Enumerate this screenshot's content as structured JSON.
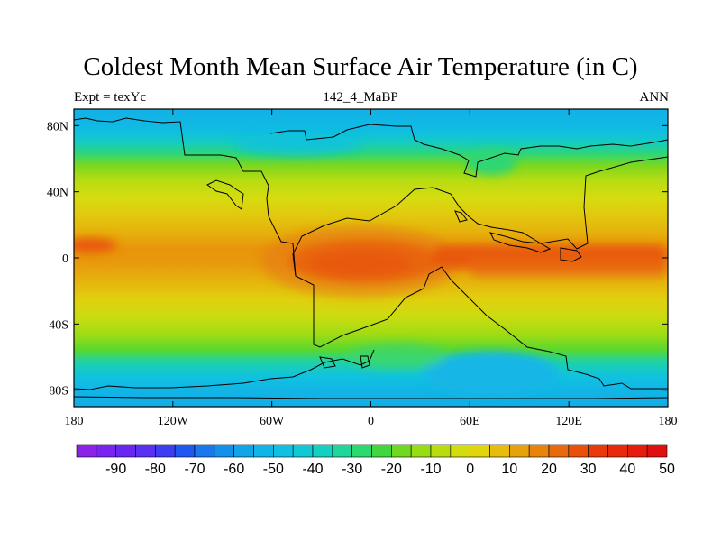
{
  "title": "Coldest Month Mean Surface Air Temperature (in C)",
  "subtitle_left": "Expt = texYc",
  "subtitle_center": "142_4_MaBP",
  "subtitle_right": "ANN",
  "map": {
    "lon_range": [
      -180,
      180
    ],
    "lat_range": [
      -90,
      90
    ],
    "x_ticks": [
      {
        "value": -180,
        "label": "180"
      },
      {
        "value": -120,
        "label": "120W"
      },
      {
        "value": -60,
        "label": "60W"
      },
      {
        "value": 0,
        "label": "0"
      },
      {
        "value": 60,
        "label": "60E"
      },
      {
        "value": 120,
        "label": "120E"
      },
      {
        "value": 180,
        "label": "180"
      }
    ],
    "y_ticks": [
      {
        "value": 80,
        "label": "80N"
      },
      {
        "value": 40,
        "label": "40N"
      },
      {
        "value": 0,
        "label": "0"
      },
      {
        "value": -40,
        "label": "40S"
      },
      {
        "value": -80,
        "label": "80S"
      }
    ]
  },
  "colorbar": {
    "boxes": [
      "#8a22e8",
      "#7a22ee",
      "#6826f0",
      "#5a30f2",
      "#3c3ef2",
      "#1f58f0",
      "#1a78ee",
      "#1590ea",
      "#12a4e8",
      "#10b4e6",
      "#10c0e2",
      "#12c8d4",
      "#14d0c0",
      "#20d69a",
      "#2cd870",
      "#40d640",
      "#70d820",
      "#98dc14",
      "#b8dc10",
      "#d2dc10",
      "#e2d40e",
      "#e6bc0e",
      "#e6a20c",
      "#e8840c",
      "#e86a0c",
      "#e8500c",
      "#e83a0c",
      "#e82a0c",
      "#e61c0c",
      "#e01010"
    ],
    "ticks": [
      {
        "index": 2,
        "label": "-90"
      },
      {
        "index": 4,
        "label": "-80"
      },
      {
        "index": 6,
        "label": "-70"
      },
      {
        "index": 8,
        "label": "-60"
      },
      {
        "index": 10,
        "label": "-50"
      },
      {
        "index": 12,
        "label": "-40"
      },
      {
        "index": 14,
        "label": "-30"
      },
      {
        "index": 16,
        "label": "-20"
      },
      {
        "index": 18,
        "label": "-10"
      },
      {
        "index": 20,
        "label": "0"
      },
      {
        "index": 22,
        "label": "10"
      },
      {
        "index": 24,
        "label": "20"
      },
      {
        "index": 26,
        "label": "30"
      },
      {
        "index": 28,
        "label": "40"
      },
      {
        "index": 30,
        "label": "50"
      }
    ]
  }
}
